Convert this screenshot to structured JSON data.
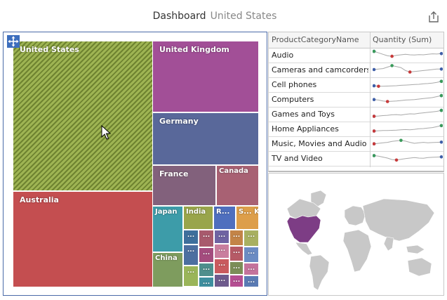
{
  "header": {
    "title": "Dashboard",
    "subtitle": "United States",
    "export_icon": "share-export-icon"
  },
  "treemap": {
    "tiles": [
      {
        "label": "United States",
        "color": "#9eb453",
        "hatched": true
      },
      {
        "label": "United Kingdom",
        "color": "#a24f97"
      },
      {
        "label": "Germany",
        "color": "#59689a"
      },
      {
        "label": "France",
        "color": "#82617c"
      },
      {
        "label": "Canada",
        "color": "#a86173"
      },
      {
        "label": "Australia",
        "color": "#c44e50"
      },
      {
        "label": "Japan",
        "color": "#3d9ca9"
      },
      {
        "label": "India",
        "color": "#99a54b"
      },
      {
        "label": "R...",
        "color": "#4f6fbe"
      },
      {
        "label": "S... K...",
        "color": "#dd9e4a"
      },
      {
        "label": "China",
        "color": "#7e9c5e"
      },
      {
        "label": "...",
        "color": "#3e6f9c"
      },
      {
        "label": "...",
        "color": "#a85a6d"
      },
      {
        "label": "...",
        "color": "#6f63a2"
      },
      {
        "label": "...",
        "color": "#c38448"
      },
      {
        "label": "...",
        "color": "#a8b061"
      },
      {
        "label": "...",
        "color": "#4c6fa0"
      },
      {
        "label": "...",
        "color": "#a44c7e"
      },
      {
        "label": "...",
        "color": "#c97e9e"
      },
      {
        "label": "...",
        "color": "#b65a66"
      },
      {
        "label": "...",
        "color": "#6b8bc3"
      },
      {
        "label": "...",
        "color": "#9ab559"
      },
      {
        "label": "...",
        "color": "#4f8e8c"
      },
      {
        "label": "...",
        "color": "#c95a5e"
      },
      {
        "label": "...",
        "color": "#7c8d58"
      },
      {
        "label": "...",
        "color": "#c4739c"
      },
      {
        "label": "...",
        "color": "#3e8f9f"
      },
      {
        "label": "...",
        "color": "#6e5b8d"
      },
      {
        "label": "...",
        "color": "#b54e92"
      },
      {
        "label": "...",
        "color": "#5a7bb4"
      },
      {
        "label": "...",
        "color": "#cf4d4d"
      },
      {
        "label": "...",
        "color": "#9c4e9e"
      },
      {
        "label": "...",
        "color": "#4a5f8f"
      }
    ]
  },
  "grid": {
    "headers": [
      "ProductCategoryName",
      "Quantity (Sum)"
    ],
    "rows": [
      {
        "name": "Audio"
      },
      {
        "name": "Cameras and camcorders"
      },
      {
        "name": "Cell phones"
      },
      {
        "name": "Computers"
      },
      {
        "name": "Games and Toys"
      },
      {
        "name": "Home Appliances"
      },
      {
        "name": "Music, Movies and Audio B..."
      },
      {
        "name": "TV and Video"
      }
    ],
    "sparkline_colors": {
      "line": "#a9a9a9",
      "start": "#3f5fa8",
      "high": "#3a9a5a",
      "low": "#c73a3a",
      "end": "#3f5fa8"
    },
    "sparkline_values": [
      [
        0.85,
        0.7,
        0.55,
        0.4,
        0.35,
        0.45,
        0.5,
        0.55,
        0.5,
        0.48,
        0.52,
        0.5,
        0.55,
        0.6,
        0.58,
        0.62
      ],
      [
        0.5,
        0.55,
        0.6,
        0.75,
        0.9,
        0.8,
        0.7,
        0.4,
        0.25,
        0.3,
        0.35,
        0.4,
        0.45,
        0.5,
        0.55,
        0.55
      ],
      [
        0.35,
        0.3,
        0.3,
        0.32,
        0.34,
        0.36,
        0.4,
        0.42,
        0.45,
        0.48,
        0.5,
        0.55,
        0.58,
        0.62,
        0.7,
        0.8
      ],
      [
        0.45,
        0.4,
        0.3,
        0.25,
        0.28,
        0.3,
        0.35,
        0.4,
        0.42,
        0.45,
        0.5,
        0.55,
        0.6,
        0.65,
        0.75,
        0.85
      ],
      [
        0.25,
        0.28,
        0.32,
        0.35,
        0.4,
        0.42,
        0.38,
        0.45,
        0.5,
        0.48,
        0.55,
        0.6,
        0.65,
        0.7,
        0.75,
        0.85
      ],
      [
        0.25,
        0.28,
        0.3,
        0.3,
        0.32,
        0.34,
        0.38,
        0.4,
        0.38,
        0.42,
        0.48,
        0.5,
        0.55,
        0.6,
        0.7,
        0.8
      ],
      [
        0.45,
        0.5,
        0.55,
        0.6,
        0.7,
        0.75,
        0.8,
        0.72,
        0.6,
        0.5,
        0.55,
        0.6,
        0.55,
        0.58,
        0.6,
        0.62
      ],
      [
        0.75,
        0.7,
        0.6,
        0.5,
        0.35,
        0.3,
        0.38,
        0.45,
        0.5,
        0.55,
        0.5,
        0.48,
        0.55,
        0.58,
        0.6,
        0.62
      ]
    ]
  },
  "map": {
    "land_color": "#c8c8c8",
    "highlight_color": "#7d3d85",
    "highlight_name": "United States"
  }
}
